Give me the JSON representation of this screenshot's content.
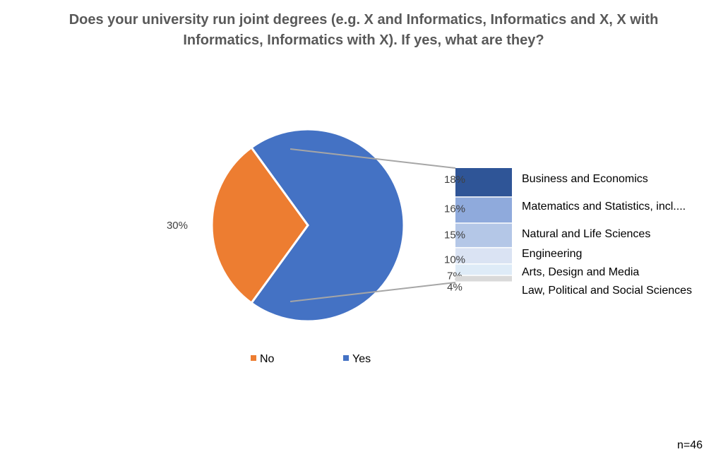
{
  "chart_data": {
    "type": "pie",
    "title": "Does your university run joint degrees (e.g. X and Informatics, Informatics and X, X with Informatics, Informatics with X). If yes, what are they?",
    "main": {
      "slices": [
        {
          "name": "No",
          "value": 30,
          "label": "30%",
          "color": "#ED7D31"
        },
        {
          "name": "Yes",
          "value": 70,
          "label": "",
          "color": "#4472C4"
        }
      ]
    },
    "breakdown": {
      "of": "Yes",
      "items": [
        {
          "name": "Business and Economics",
          "value": 18,
          "label": "18%",
          "color": "#2F5597"
        },
        {
          "name": "Matematics and Statistics, incl....",
          "value": 16,
          "label": "16%",
          "color": "#8FAADC"
        },
        {
          "name": "Natural and Life Sciences",
          "value": 15,
          "label": "15%",
          "color": "#B4C7E7"
        },
        {
          "name": "Engineering",
          "value": 10,
          "label": "10%",
          "color": "#DAE3F3"
        },
        {
          "name": "Arts, Design and Media",
          "value": 7,
          "label": "7%",
          "color": "#DEEBF7"
        },
        {
          "name": "Law, Political and Social Sciences",
          "value": 4,
          "label": "4%",
          "color": "#D9D9D9"
        }
      ]
    },
    "legend": {
      "position": "bottom",
      "entries": [
        "No",
        "Yes"
      ]
    }
  },
  "footnote": "n=46"
}
